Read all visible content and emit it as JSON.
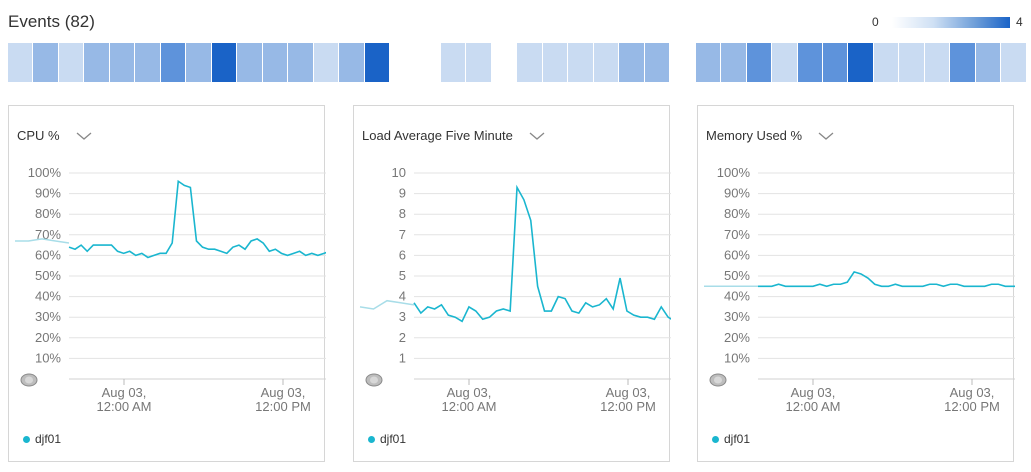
{
  "events": {
    "title": "Events (82)",
    "scale_min": "0",
    "scale_max": "4",
    "heat_levels": [
      1,
      2,
      1,
      2,
      2,
      2,
      3,
      2,
      4,
      2,
      2,
      2,
      1,
      2,
      4,
      0,
      0,
      1,
      1,
      0,
      1,
      1,
      1,
      1,
      2,
      2,
      0,
      2,
      2,
      3,
      1,
      3,
      3,
      4,
      1,
      1,
      1,
      3,
      2,
      1
    ]
  },
  "colors": {
    "series": "#1ab6cf",
    "heat_scale": [
      "#ffffff",
      "#c9dbf2",
      "#97b9e6",
      "#5e93db",
      "#1a63c7"
    ]
  },
  "panels": [
    {
      "title": "CPU %",
      "legend": "djf01",
      "chart_data": {
        "type": "line",
        "ylabel": "",
        "xlabel": "",
        "y_ticks": [
          "10%",
          "20%",
          "30%",
          "40%",
          "50%",
          "60%",
          "70%",
          "80%",
          "90%",
          "100%"
        ],
        "ylim": [
          0,
          100
        ],
        "x_ticks": [
          [
            "Aug 03,",
            "12:00 AM"
          ],
          [
            "Aug 03,",
            "12:00 PM"
          ]
        ],
        "faded": [
          67,
          67,
          68,
          67,
          66
        ],
        "series": [
          {
            "name": "djf01",
            "values": [
              64,
              63,
              65,
              62,
              65,
              65,
              65,
              65,
              62,
              61,
              62,
              60,
              61,
              59,
              60,
              61,
              61,
              66,
              96,
              94,
              93,
              67,
              64,
              63,
              63,
              62,
              61,
              64,
              65,
              63,
              67,
              68,
              66,
              62,
              63,
              61,
              60,
              61,
              62,
              60,
              61,
              60,
              61,
              62
            ]
          }
        ]
      }
    },
    {
      "title": "Load Average Five Minute",
      "legend": "djf01",
      "chart_data": {
        "type": "line",
        "ylabel": "",
        "xlabel": "",
        "y_ticks": [
          "1",
          "2",
          "3",
          "4",
          "5",
          "6",
          "7",
          "8",
          "9",
          "10"
        ],
        "ylim": [
          0,
          10
        ],
        "x_ticks": [
          [
            "Aug 03,",
            "12:00 AM"
          ],
          [
            "Aug 03,",
            "12:00 PM"
          ]
        ],
        "faded": [
          3.5,
          3.4,
          3.8,
          3.7,
          3.6
        ],
        "series": [
          {
            "name": "djf01",
            "values": [
              3.7,
              3.2,
              3.5,
              3.4,
              3.6,
              3.1,
              3.0,
              2.8,
              3.5,
              3.3,
              2.9,
              3.0,
              3.3,
              3.4,
              3.3,
              9.3,
              8.7,
              7.7,
              4.5,
              3.3,
              3.3,
              4.0,
              3.9,
              3.3,
              3.2,
              3.7,
              3.5,
              3.6,
              3.9,
              3.4,
              4.9,
              3.3,
              3.1,
              3.0,
              3.0,
              2.9,
              3.5,
              3.0,
              2.8
            ]
          }
        ]
      }
    },
    {
      "title": "Memory Used %",
      "legend": "djf01",
      "chart_data": {
        "type": "line",
        "ylabel": "",
        "xlabel": "",
        "y_ticks": [
          "10%",
          "20%",
          "30%",
          "40%",
          "50%",
          "60%",
          "70%",
          "80%",
          "90%",
          "100%"
        ],
        "ylim": [
          0,
          100
        ],
        "x_ticks": [
          [
            "Aug 03,",
            "12:00 AM"
          ],
          [
            "Aug 03,",
            "12:00 PM"
          ]
        ],
        "faded": [
          45,
          45,
          45,
          45,
          45
        ],
        "series": [
          {
            "name": "djf01",
            "values": [
              45,
              45,
              45,
              46,
              45,
              45,
              45,
              45,
              45,
              46,
              45,
              46,
              46,
              47,
              52,
              51,
              49,
              46,
              45,
              45,
              46,
              45,
              45,
              45,
              45,
              46,
              46,
              45,
              46,
              46,
              45,
              45,
              45,
              45,
              46,
              46,
              45,
              45,
              45
            ]
          }
        ]
      }
    }
  ]
}
